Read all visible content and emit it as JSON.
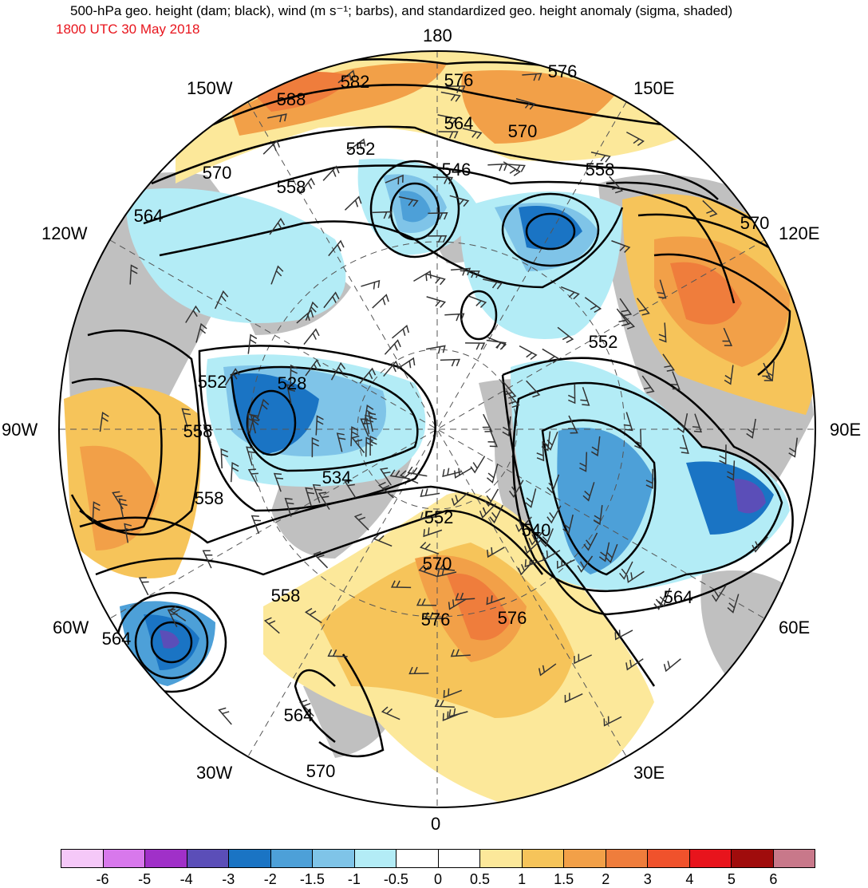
{
  "header": {
    "title": "500-hPa geo. height (dam; black), wind (m s⁻¹; barbs), and standardized geo. height anomaly (sigma, shaded)",
    "valid_time": "1800 UTC 30 May 2018",
    "valid_time_color": "#e8141c"
  },
  "longitude_labels": {
    "n": "180",
    "s": "0",
    "w90": "90W",
    "e90": "90E",
    "w150": "150W",
    "e150": "150E",
    "w120": "120W",
    "e120": "120E",
    "w60": "60W",
    "e60": "60E",
    "w30": "30W",
    "e30": "30E"
  },
  "contour_labels": [
    "588",
    "582",
    "576",
    "576",
    "564",
    "570",
    "552",
    "546",
    "558",
    "570",
    "558",
    "564",
    "570",
    "552",
    "528",
    "552",
    "558",
    "534",
    "558",
    "552",
    "540",
    "570",
    "576",
    "576",
    "564",
    "558",
    "564",
    "564",
    "570"
  ],
  "colors": {
    "land_gray": "#c0c0c0",
    "neg_anomaly": [
      "#b3ecf6",
      "#7fc4e8",
      "#4da0d8",
      "#1a74c4",
      "#5b4eb8",
      "#a030c8",
      "#d878ec",
      "#f5c8f8"
    ],
    "pos_anomaly": [
      "#fce89a",
      "#f6c45a",
      "#f2a048",
      "#ef7d3c",
      "#f0522c",
      "#e8141c",
      "#a00c0c",
      "#c8788a"
    ]
  },
  "colorbar": {
    "colors": [
      "#f5c8f8",
      "#d878ec",
      "#a030c8",
      "#5b4eb8",
      "#1a74c4",
      "#4da0d8",
      "#7fc4e8",
      "#b3ecf6",
      "#ffffff",
      "#ffffff",
      "#fce89a",
      "#f6c45a",
      "#f2a048",
      "#ef7d3c",
      "#f0522c",
      "#e8141c",
      "#a00c0c",
      "#c8788a"
    ],
    "tick_labels": [
      "-6",
      "-5",
      "-4",
      "-3",
      "-2",
      "-1.5",
      "-1",
      "-0.5",
      "0",
      "0.5",
      "1",
      "1.5",
      "2",
      "3",
      "4",
      "5",
      "6"
    ]
  }
}
